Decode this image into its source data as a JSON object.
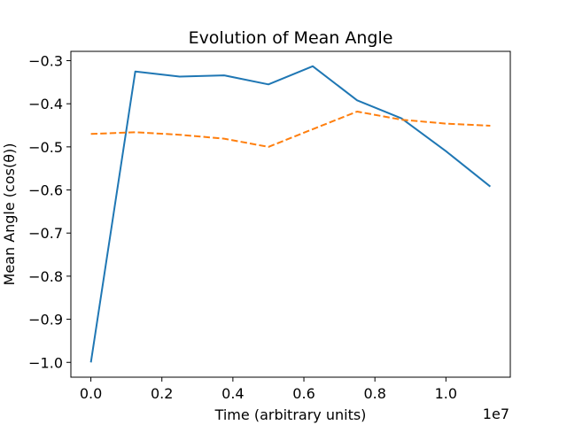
{
  "chart_data": {
    "type": "line",
    "title": "Evolution of Mean Angle",
    "xlabel": "Time (arbitrary units)",
    "ylabel": "Mean Angle (cos(θ))",
    "x_offset_label": "1e7",
    "xlim": [
      -0.0563,
      1.1813
    ],
    "ylim": [
      -1.0344,
      -0.2784
    ],
    "x_ticks": [
      0.0,
      0.2,
      0.4,
      0.6,
      0.8,
      1.0
    ],
    "x_tick_labels": [
      "0.0",
      "0.2",
      "0.4",
      "0.6",
      "0.8",
      "1.0"
    ],
    "y_ticks": [
      -1.0,
      -0.9,
      -0.8,
      -0.7,
      -0.6,
      -0.5,
      -0.4,
      -0.3
    ],
    "y_tick_labels": [
      "−1.0",
      "−0.9",
      "−0.8",
      "−0.7",
      "−0.6",
      "−0.5",
      "−0.4",
      "−0.3"
    ],
    "grid": false,
    "legend": null,
    "x": [
      0.0,
      0.125,
      0.25,
      0.375,
      0.5,
      0.625,
      0.75,
      0.875,
      1.0,
      1.125
    ],
    "series": [
      {
        "color": "#1f77b4",
        "linestyle": "solid",
        "values": [
          -1.0,
          -0.325,
          -0.337,
          -0.334,
          -0.355,
          -0.313,
          -0.392,
          -0.434,
          -0.51,
          -0.592
        ]
      },
      {
        "color": "#ff7f0e",
        "linestyle": "dashed",
        "values": [
          -0.47,
          -0.466,
          -0.472,
          -0.481,
          -0.5,
          -0.459,
          -0.418,
          -0.437,
          -0.446,
          -0.451
        ]
      }
    ]
  }
}
